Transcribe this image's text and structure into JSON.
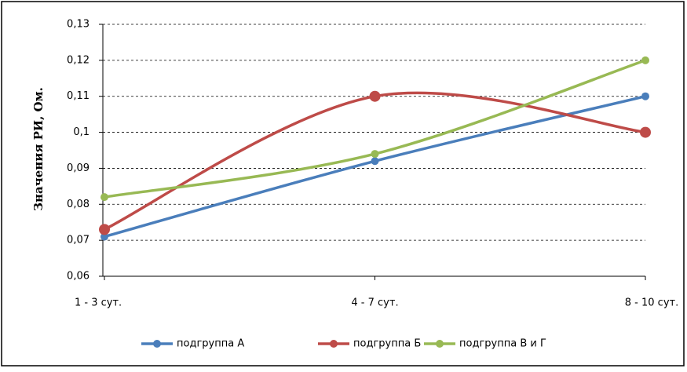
{
  "chart_data": {
    "type": "line",
    "smooth": true,
    "ylabel": "Значения РИ, Ом.",
    "categories": [
      "1 - 3 сут.",
      "4 - 7 сут.",
      "8 - 10 сут."
    ],
    "series": [
      {
        "name": "подгруппа А",
        "color": "#4a7ebb",
        "values": [
          0.071,
          0.092,
          0.11
        ]
      },
      {
        "name": "подгруппа Б",
        "color": "#be4b48",
        "values": [
          0.073,
          0.11,
          0.1
        ]
      },
      {
        "name": "подгруппа В и Г",
        "color": "#98b954",
        "values": [
          0.082,
          0.094,
          0.12
        ]
      }
    ],
    "ylim": [
      0.06,
      0.13
    ],
    "yticks": [
      {
        "value": 0.06,
        "label": "0,06"
      },
      {
        "value": 0.07,
        "label": "0,07"
      },
      {
        "value": 0.08,
        "label": "0,08"
      },
      {
        "value": 0.09,
        "label": "0,09"
      },
      {
        "value": 0.1,
        "label": "0,1"
      },
      {
        "value": 0.11,
        "label": "0,11"
      },
      {
        "value": 0.12,
        "label": "0,12"
      },
      {
        "value": 0.13,
        "label": "0,13"
      }
    ],
    "grid": true,
    "legend": "bottom"
  }
}
